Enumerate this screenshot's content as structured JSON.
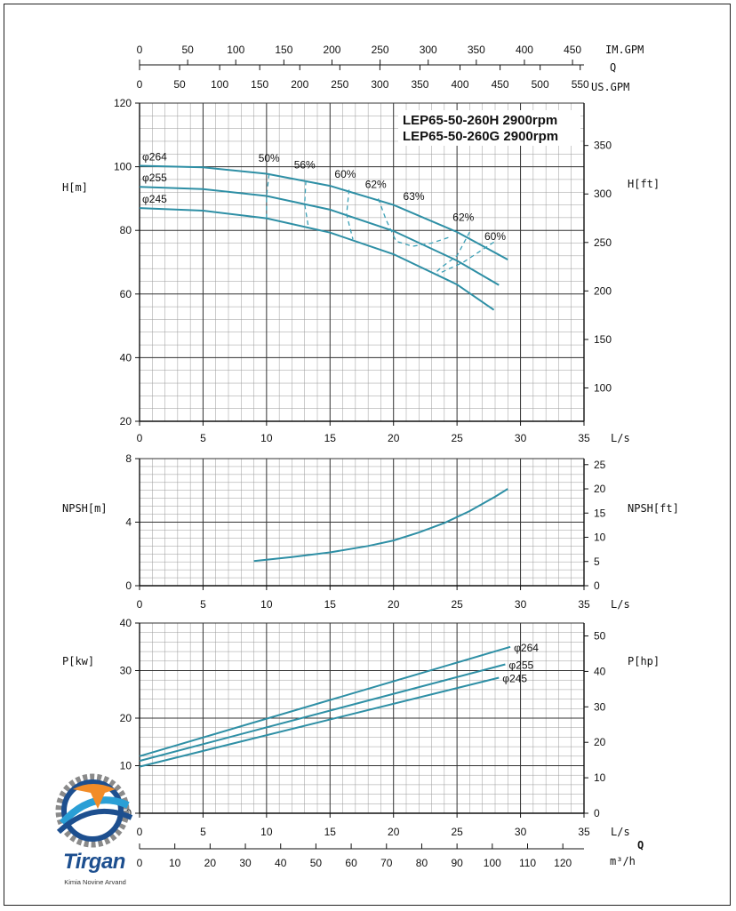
{
  "colors": {
    "curve": "#2e8fa5",
    "dash": "#3a9fb5",
    "grid_major": "#333333",
    "grid_minor": "#9a9a9a",
    "brand": "#1d4f8f",
    "accent": "#f28c28"
  },
  "top_axes": {
    "im_gpm": {
      "label": "IM.GPM",
      "ticks": [
        "0",
        "50",
        "100",
        "150",
        "200",
        "250",
        "300",
        "350",
        "400",
        "450"
      ]
    },
    "q_label": "Q",
    "us_gpm": {
      "label": "US.GPM",
      "ticks": [
        "0",
        "50",
        "100",
        "150",
        "200",
        "250",
        "300",
        "350",
        "400",
        "450",
        "500",
        "550"
      ]
    }
  },
  "chart_data": [
    {
      "type": "line",
      "title": "LEP65-50-260H 2900rpm",
      "subtitle": "LEP65-50-260G 2900rpm",
      "xlabel": "L/s",
      "ylabel": "H[m]",
      "ylabel_right": "H[ft]",
      "xlim": [
        0,
        35
      ],
      "ylim": [
        20,
        120
      ],
      "x_ticks": [
        "0",
        "5",
        "10",
        "15",
        "20",
        "25",
        "30",
        "35"
      ],
      "y_ticks": [
        "20",
        "40",
        "60",
        "80",
        "100",
        "120"
      ],
      "y_right_ticks": [
        "100",
        "150",
        "200",
        "250",
        "300",
        "350"
      ],
      "grid": true,
      "series": [
        {
          "name": "φ264",
          "x": [
            0,
            5,
            10,
            15,
            20,
            25,
            29
          ],
          "y": [
            100.3,
            99.8,
            97.8,
            94.0,
            88.0,
            79.5,
            70.8
          ]
        },
        {
          "name": "φ255",
          "x": [
            0,
            5,
            10,
            15,
            20,
            25,
            28.3
          ],
          "y": [
            93.7,
            93.0,
            90.8,
            86.5,
            79.8,
            70.5,
            62.8
          ]
        },
        {
          "name": "φ245",
          "x": [
            0,
            5,
            10,
            15,
            20,
            25,
            27.9
          ],
          "y": [
            87.0,
            86.2,
            83.8,
            79.3,
            72.5,
            63.0,
            55.0
          ]
        }
      ],
      "efficiency_lines": [
        {
          "label": "50%",
          "x": [
            10.2,
            10.0,
            10.0
          ],
          "y": [
            97.7,
            90.8,
            83.8
          ]
        },
        {
          "label": "56%",
          "x": [
            13.1,
            13.0,
            13.3
          ],
          "y": [
            95.6,
            88.2,
            81.0
          ]
        },
        {
          "label": "60%",
          "x": [
            16.5,
            16.3,
            16.8
          ],
          "y": [
            92.8,
            85.0,
            77.2
          ]
        },
        {
          "label": "62%",
          "x": [
            18.8,
            19.4,
            20.2,
            21.5,
            23.0,
            24.5
          ],
          "y": [
            90.0,
            83.5,
            76.6,
            75.0,
            76.0,
            78.0
          ]
        },
        {
          "label": "62%",
          "x": [
            26.0,
            25.0,
            23.8,
            23.2
          ],
          "y": [
            79.5,
            72.0,
            68.5,
            66.3
          ]
        },
        {
          "label": "60%",
          "x": [
            27.9,
            25.5,
            23.5
          ],
          "y": [
            76.3,
            70.0,
            66.3
          ]
        }
      ],
      "efficiency_labels": [
        {
          "text": "50%",
          "x": 10.2,
          "y": 101.5
        },
        {
          "text": "56%",
          "x": 13.0,
          "y": 99.5
        },
        {
          "text": "60%",
          "x": 16.2,
          "y": 96.5
        },
        {
          "text": "62%",
          "x": 18.6,
          "y": 93.3
        },
        {
          "text": "63%",
          "x": 21.6,
          "y": 89.5
        },
        {
          "text": "62%",
          "x": 25.5,
          "y": 83.0
        },
        {
          "text": "60%",
          "x": 28.0,
          "y": 77.0
        }
      ]
    },
    {
      "type": "line",
      "xlabel": "L/s",
      "ylabel": "NPSH[m]",
      "ylabel_right": "NPSH[ft]",
      "xlim": [
        0,
        35
      ],
      "ylim": [
        0,
        8
      ],
      "x_ticks": [
        "0",
        "5",
        "10",
        "15",
        "20",
        "25",
        "30",
        "35"
      ],
      "y_ticks": [
        "0",
        "4",
        "8"
      ],
      "y_right_ticks": [
        "0",
        "5",
        "10",
        "15",
        "20",
        "25"
      ],
      "grid": true,
      "series": [
        {
          "x": [
            9,
            12,
            15,
            18,
            20,
            22,
            24,
            26,
            28,
            29
          ],
          "y": [
            1.55,
            1.8,
            2.1,
            2.5,
            2.85,
            3.35,
            3.95,
            4.7,
            5.6,
            6.1
          ]
        }
      ]
    },
    {
      "type": "line",
      "xlabel": "L/s",
      "ylabel": "P[kw]",
      "ylabel_right": "P[hp]",
      "xlim": [
        0,
        35
      ],
      "ylim": [
        0,
        40
      ],
      "x_ticks": [
        "0",
        "5",
        "10",
        "15",
        "20",
        "25",
        "30",
        "35"
      ],
      "y_ticks": [
        "0",
        "10",
        "20",
        "30",
        "40"
      ],
      "y_right_ticks": [
        "0",
        "10",
        "20",
        "30",
        "40",
        "50"
      ],
      "x2_label": "m³/h",
      "x2_ticks": [
        "0",
        "10",
        "20",
        "30",
        "40",
        "50",
        "60",
        "70",
        "80",
        "90",
        "100",
        "110",
        "120"
      ],
      "q_label": "Q",
      "grid": true,
      "series": [
        {
          "name": "φ264",
          "x": [
            0,
            29.2
          ],
          "y": [
            12.0,
            35.0
          ]
        },
        {
          "name": "φ255",
          "x": [
            0,
            28.8
          ],
          "y": [
            11.0,
            31.3
          ]
        },
        {
          "name": "φ245",
          "x": [
            0,
            28.3
          ],
          "y": [
            9.8,
            28.5
          ]
        }
      ]
    }
  ],
  "logo": {
    "brand": "Tirgan",
    "tagline": "Kimia Novine Arvand"
  }
}
